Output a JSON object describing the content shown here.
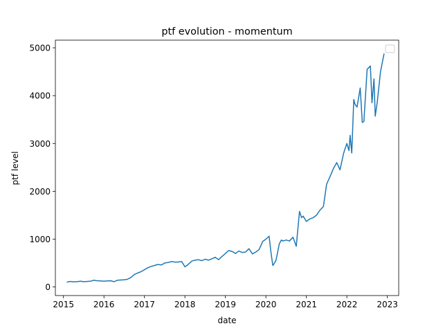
{
  "chart_data": {
    "type": "line",
    "title": "ptf evolution - momentum",
    "xlabel": "date",
    "ylabel": "ptf level",
    "xlim": [
      2014.8,
      2023.28
    ],
    "ylim": [
      -180,
      5160
    ],
    "xticks": [
      2015,
      2016,
      2017,
      2018,
      2019,
      2020,
      2021,
      2022,
      2023
    ],
    "xtick_labels": [
      "2015",
      "2016",
      "2017",
      "2018",
      "2019",
      "2020",
      "2021",
      "2022",
      "2023"
    ],
    "yticks": [
      0,
      1000,
      2000,
      3000,
      4000,
      5000
    ],
    "ytick_labels": [
      "0",
      "1000",
      "2000",
      "3000",
      "4000",
      "5000"
    ],
    "grid": false,
    "legend": "top-right (empty)",
    "series": [
      {
        "color": "#1f77b4",
        "x": [
          2015.08,
          2015.17,
          2015.25,
          2015.33,
          2015.42,
          2015.5,
          2015.58,
          2015.67,
          2015.75,
          2015.83,
          2015.92,
          2016.0,
          2016.08,
          2016.17,
          2016.25,
          2016.33,
          2016.42,
          2016.5,
          2016.58,
          2016.67,
          2016.75,
          2016.83,
          2016.92,
          2017.0,
          2017.08,
          2017.17,
          2017.25,
          2017.33,
          2017.42,
          2017.5,
          2017.58,
          2017.67,
          2017.75,
          2017.83,
          2017.92,
          2018.0,
          2018.08,
          2018.17,
          2018.25,
          2018.33,
          2018.42,
          2018.5,
          2018.58,
          2018.67,
          2018.75,
          2018.83,
          2018.92,
          2019.0,
          2019.08,
          2019.17,
          2019.25,
          2019.33,
          2019.42,
          2019.5,
          2019.58,
          2019.67,
          2019.75,
          2019.83,
          2019.92,
          2020.0,
          2020.08,
          2020.12,
          2020.17,
          2020.2,
          2020.25,
          2020.33,
          2020.38,
          2020.42,
          2020.5,
          2020.58,
          2020.67,
          2020.75,
          2020.83,
          2020.88,
          2020.92,
          2021.0,
          2021.08,
          2021.17,
          2021.25,
          2021.33,
          2021.42,
          2021.5,
          2021.58,
          2021.67,
          2021.75,
          2021.83,
          2021.92,
          2022.0,
          2022.05,
          2022.08,
          2022.12,
          2022.17,
          2022.2,
          2022.25,
          2022.33,
          2022.38,
          2022.42,
          2022.5,
          2022.58,
          2022.62,
          2022.67,
          2022.7,
          2022.75,
          2022.83,
          2022.92
        ],
        "y": [
          100,
          115,
          105,
          110,
          120,
          110,
          115,
          120,
          140,
          130,
          125,
          120,
          125,
          130,
          110,
          140,
          145,
          150,
          160,
          200,
          260,
          290,
          320,
          360,
          400,
          430,
          450,
          470,
          460,
          500,
          510,
          530,
          520,
          520,
          530,
          420,
          470,
          540,
          560,
          570,
          550,
          580,
          560,
          590,
          620,
          570,
          640,
          700,
          760,
          740,
          700,
          750,
          720,
          730,
          800,
          690,
          730,
          780,
          950,
          1000,
          1060,
          750,
          450,
          480,
          560,
          900,
          980,
          960,
          980,
          960,
          1040,
          850,
          1580,
          1450,
          1480,
          1370,
          1420,
          1450,
          1500,
          1600,
          1680,
          2150,
          2300,
          2480,
          2600,
          2450,
          2800,
          3000,
          2850,
          3170,
          2800,
          3920,
          3820,
          3760,
          4160,
          3440,
          3460,
          4550,
          4620,
          3850,
          4350,
          3570,
          3860,
          4500,
          4880
        ]
      }
    ]
  }
}
